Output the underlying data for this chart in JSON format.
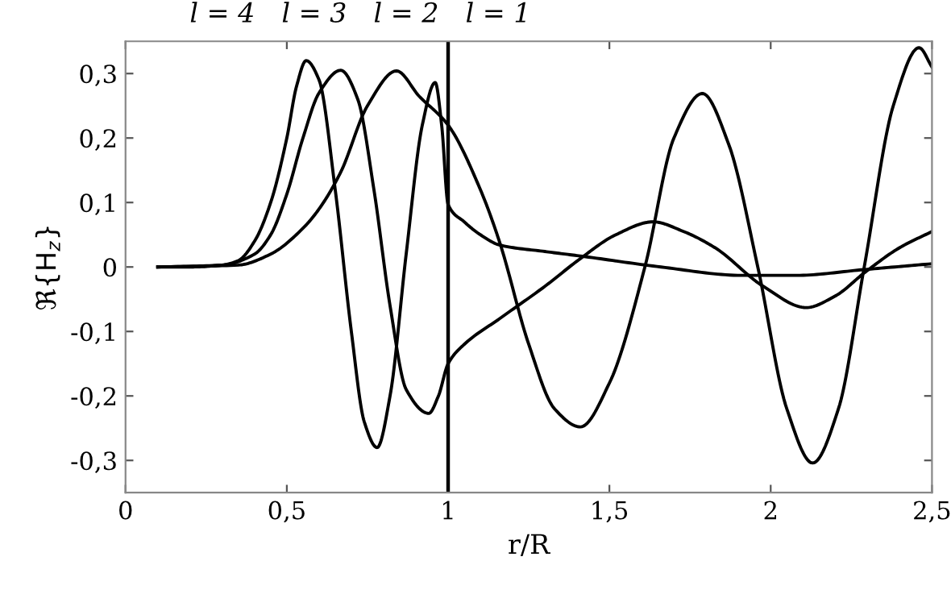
{
  "chart_data": {
    "type": "line",
    "xlabel": "r/R",
    "ylabel": "ℜ{H$_{z}$}",
    "annotations": [
      "l = 4",
      "l = 3",
      "l = 2",
      "l = 1"
    ],
    "xlim": [
      0,
      2.5
    ],
    "ylim": [
      -0.35,
      0.35
    ],
    "xticks": [
      0,
      {
        "value": 0.5,
        "label": "0,5"
      },
      1,
      {
        "value": 1.5,
        "label": "1,5"
      },
      2,
      {
        "value": 2.5,
        "label": "2,5"
      }
    ],
    "yticks": [
      {
        "value": -0.3,
        "label": "-0,3"
      },
      {
        "value": -0.2,
        "label": "-0,2"
      },
      {
        "value": -0.1,
        "label": "-0,1"
      },
      0,
      {
        "value": 0.1,
        "label": "0,1"
      },
      {
        "value": 0.2,
        "label": "0,2"
      },
      {
        "value": 0.3,
        "label": "0,3"
      }
    ],
    "ref_lines": [
      {
        "axis": "x",
        "value": 1,
        "color": "#000000"
      }
    ],
    "grid": false,
    "marker": "none",
    "line_style": "solid",
    "series": [
      {
        "color": "#000000",
        "x": [
          0.1,
          0.2,
          0.3,
          0.35,
          0.4,
          0.45,
          0.5,
          0.53,
          0.56,
          0.6,
          0.65,
          0.7,
          0.74,
          0.78,
          0.82,
          0.87,
          0.92,
          0.96,
          0.98,
          1.0,
          1.05,
          1.1,
          1.16,
          1.3,
          1.41,
          1.66,
          1.91,
          2.08,
          2.29,
          2.5
        ],
        "values": [
          0,
          0,
          0.003,
          0.01,
          0.04,
          0.1,
          0.2,
          0.28,
          0.32,
          0.29,
          0.12,
          -0.1,
          -0.24,
          -0.28,
          -0.2,
          0.02,
          0.22,
          0.286,
          0.22,
          0.097,
          0.07,
          0.05,
          0.034,
          0.024,
          0.017,
          0.0,
          -0.013,
          -0.013,
          -0.004,
          0.005
        ]
      },
      {
        "color": "#000000",
        "x": [
          0.1,
          0.3,
          0.4,
          0.45,
          0.5,
          0.55,
          0.6,
          0.667,
          0.72,
          0.77,
          0.82,
          0.87,
          0.94,
          0.97,
          1.0,
          1.05,
          1.16,
          1.3,
          1.41,
          1.52,
          1.635,
          1.73,
          1.827,
          1.977,
          2.11,
          2.2,
          2.293,
          2.4,
          2.5
        ],
        "values": [
          0,
          0.003,
          0.02,
          0.05,
          0.113,
          0.2,
          0.27,
          0.305,
          0.26,
          0.12,
          -0.06,
          -0.19,
          -0.227,
          -0.2,
          -0.15,
          -0.12,
          -0.08,
          -0.03,
          0.013,
          0.05,
          0.07,
          0.055,
          0.03,
          -0.03,
          -0.063,
          -0.045,
          -0.008,
          0.03,
          0.055
        ]
      },
      {
        "color": "#000000",
        "x": [
          0.1,
          0.35,
          0.45,
          0.55,
          0.6,
          0.667,
          0.75,
          0.84,
          0.91,
          1.0,
          1.1,
          1.16,
          1.25,
          1.33,
          1.41,
          1.5,
          1.61,
          1.7,
          1.788,
          1.87,
          1.96,
          2.05,
          2.13,
          2.21,
          2.29,
          2.38,
          2.46,
          2.5
        ],
        "values": [
          0,
          0.003,
          0.02,
          0.06,
          0.09,
          0.147,
          0.25,
          0.304,
          0.265,
          0.22,
          0.12,
          0.038,
          -0.12,
          -0.22,
          -0.248,
          -0.18,
          0.0,
          0.2,
          0.269,
          0.19,
          0.0,
          -0.22,
          -0.304,
          -0.22,
          0.0,
          0.25,
          0.34,
          0.31
        ]
      }
    ]
  }
}
